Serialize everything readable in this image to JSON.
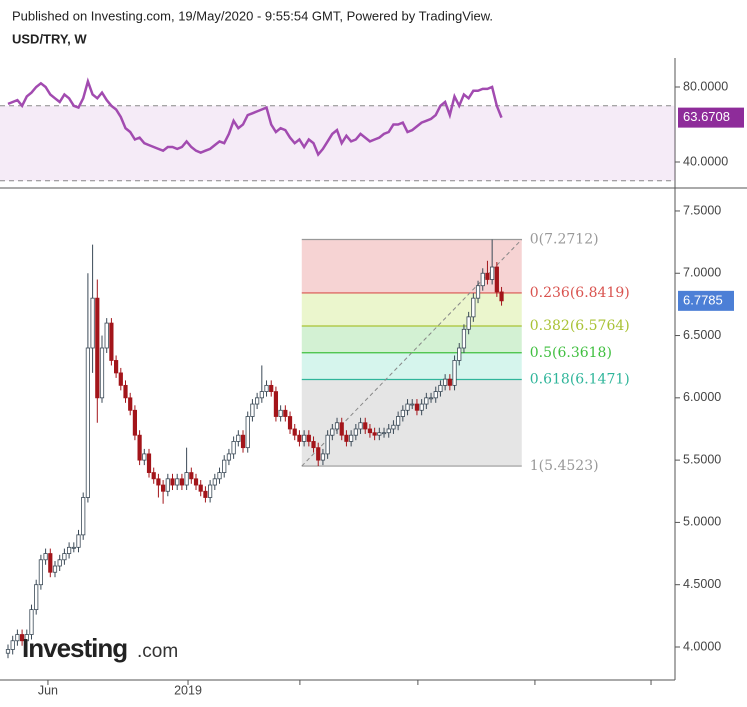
{
  "chart_data": {
    "type": "candlestick",
    "header": "Published on Investing.com, 19/May/2020 - 9:55:54 GMT, Powered by TradingView.",
    "title": "USD/TRY, W",
    "up_color": "#ffffff",
    "up_edge": "#3b4a57",
    "down_color": "#a3151a",
    "x": [
      0,
      1,
      2,
      3,
      4,
      5,
      6,
      7,
      8,
      9,
      10,
      11,
      12,
      13,
      14,
      15,
      16,
      17,
      18,
      19,
      20,
      21,
      22,
      23,
      24,
      25,
      26,
      27,
      28,
      29,
      30,
      31,
      32,
      33,
      34,
      35,
      36,
      37,
      38,
      39,
      40,
      41,
      42,
      43,
      44,
      45,
      46,
      47,
      48,
      49,
      50,
      51,
      52,
      53,
      54,
      55,
      56,
      57,
      58,
      59,
      60,
      61,
      62,
      63,
      64,
      65,
      66,
      67,
      68,
      69,
      70,
      71,
      72,
      73,
      74,
      75,
      76,
      77,
      78,
      79,
      80,
      81,
      82,
      83,
      84,
      85,
      86,
      87,
      88,
      89,
      90,
      91,
      92,
      93,
      94,
      95,
      96,
      97,
      98,
      99,
      100,
      101,
      102,
      103,
      104,
      105
    ],
    "open": [
      3.95,
      3.98,
      4.05,
      4.1,
      4.05,
      4.1,
      4.3,
      4.5,
      4.7,
      4.75,
      4.6,
      4.65,
      4.7,
      4.75,
      4.8,
      4.8,
      4.9,
      5.2,
      6.4,
      6.8,
      6.0,
      6.4,
      6.6,
      6.3,
      6.2,
      6.1,
      6.0,
      5.9,
      5.7,
      5.5,
      5.55,
      5.4,
      5.35,
      5.3,
      5.25,
      5.35,
      5.3,
      5.35,
      5.3,
      5.4,
      5.35,
      5.3,
      5.25,
      5.2,
      5.3,
      5.35,
      5.4,
      5.5,
      5.55,
      5.65,
      5.7,
      5.6,
      5.85,
      5.95,
      6.0,
      6.05,
      6.1,
      6.05,
      5.85,
      5.9,
      5.85,
      5.75,
      5.7,
      5.65,
      5.7,
      5.65,
      5.6,
      5.5,
      5.55,
      5.7,
      5.75,
      5.8,
      5.7,
      5.65,
      5.7,
      5.75,
      5.8,
      5.75,
      5.72,
      5.7,
      5.72,
      5.72,
      5.75,
      5.78,
      5.85,
      5.9,
      5.95,
      5.95,
      5.9,
      5.95,
      6.0,
      6.0,
      6.05,
      6.1,
      6.15,
      6.1,
      6.3,
      6.4,
      6.55,
      6.65,
      6.8,
      6.9,
      7.0,
      6.95,
      7.05,
      6.85
    ],
    "high": [
      4.02,
      4.09,
      4.14,
      4.14,
      4.14,
      4.34,
      4.54,
      4.74,
      4.79,
      4.79,
      4.69,
      4.74,
      4.79,
      4.84,
      4.84,
      4.94,
      5.24,
      7.0,
      7.23,
      6.95,
      6.5,
      6.64,
      6.64,
      6.34,
      6.24,
      6.14,
      6.04,
      5.94,
      5.74,
      5.59,
      5.59,
      5.44,
      5.39,
      5.34,
      5.39,
      5.39,
      5.39,
      5.39,
      5.6,
      5.44,
      5.39,
      5.34,
      5.29,
      5.34,
      5.39,
      5.44,
      5.54,
      5.59,
      5.69,
      5.74,
      5.74,
      5.89,
      5.99,
      6.04,
      6.26,
      6.14,
      6.14,
      6.09,
      5.94,
      5.94,
      5.89,
      5.79,
      5.74,
      5.74,
      5.74,
      5.69,
      5.64,
      5.59,
      5.74,
      5.79,
      5.84,
      5.84,
      5.74,
      5.74,
      5.79,
      5.84,
      5.84,
      5.79,
      5.76,
      5.76,
      5.76,
      5.79,
      5.82,
      5.89,
      5.94,
      5.99,
      5.99,
      5.99,
      5.99,
      6.04,
      6.04,
      6.09,
      6.14,
      6.19,
      6.19,
      6.34,
      6.44,
      6.59,
      6.69,
      6.84,
      6.94,
      7.04,
      7.1,
      7.2712,
      7.09,
      6.89
    ],
    "low": [
      3.91,
      3.94,
      4.01,
      4.01,
      4.01,
      4.06,
      4.26,
      4.46,
      4.66,
      4.56,
      4.56,
      4.61,
      4.66,
      4.71,
      4.76,
      4.76,
      4.86,
      5.16,
      6.2,
      5.8,
      5.96,
      6.36,
      6.26,
      6.16,
      6.06,
      5.96,
      5.86,
      5.66,
      5.46,
      5.46,
      5.36,
      5.31,
      5.2,
      5.15,
      5.21,
      5.26,
      5.26,
      5.26,
      5.26,
      5.31,
      5.26,
      5.21,
      5.16,
      5.16,
      5.26,
      5.31,
      5.36,
      5.46,
      5.51,
      5.61,
      5.56,
      5.56,
      5.81,
      5.91,
      5.96,
      6.01,
      6.01,
      5.81,
      5.81,
      5.81,
      5.71,
      5.66,
      5.61,
      5.61,
      5.61,
      5.56,
      5.4523,
      5.46,
      5.51,
      5.66,
      5.71,
      5.66,
      5.61,
      5.61,
      5.66,
      5.71,
      5.71,
      5.68,
      5.66,
      5.66,
      5.68,
      5.68,
      5.71,
      5.74,
      5.81,
      5.86,
      5.91,
      5.86,
      5.86,
      5.91,
      5.96,
      5.96,
      6.01,
      6.06,
      6.06,
      6.06,
      6.26,
      6.36,
      6.51,
      6.61,
      6.76,
      6.86,
      6.91,
      6.91,
      6.81,
      6.74
    ],
    "close": [
      3.98,
      4.05,
      4.1,
      4.05,
      4.1,
      4.3,
      4.5,
      4.7,
      4.75,
      4.6,
      4.65,
      4.7,
      4.75,
      4.8,
      4.8,
      4.9,
      5.2,
      6.4,
      6.8,
      6.0,
      6.4,
      6.6,
      6.3,
      6.2,
      6.1,
      6.0,
      5.9,
      5.7,
      5.5,
      5.55,
      5.4,
      5.35,
      5.3,
      5.25,
      5.35,
      5.3,
      5.35,
      5.3,
      5.4,
      5.35,
      5.3,
      5.25,
      5.2,
      5.3,
      5.35,
      5.4,
      5.5,
      5.55,
      5.65,
      5.7,
      5.6,
      5.85,
      5.95,
      6.0,
      6.05,
      6.1,
      6.05,
      5.85,
      5.9,
      5.85,
      5.75,
      5.7,
      5.65,
      5.7,
      5.65,
      5.6,
      5.5,
      5.55,
      5.7,
      5.75,
      5.8,
      5.7,
      5.65,
      5.7,
      5.75,
      5.8,
      5.75,
      5.72,
      5.7,
      5.72,
      5.72,
      5.75,
      5.78,
      5.85,
      5.9,
      5.95,
      5.95,
      5.9,
      5.95,
      6.0,
      6.0,
      6.05,
      6.1,
      6.15,
      6.1,
      6.3,
      6.4,
      6.55,
      6.65,
      6.8,
      6.9,
      7.0,
      6.95,
      7.05,
      6.85,
      6.7785
    ],
    "last_label": "6.7785",
    "last_color": "#4c7fd6",
    "xlim": [
      -1.7,
      141.9
    ],
    "xticks": [
      {
        "value": 8.5,
        "label": "Jun"
      },
      {
        "value": 38.3,
        "label": "2019"
      },
      {
        "value": 62.1,
        "label": null
      },
      {
        "value": 87.2,
        "label": null
      },
      {
        "value": 112.1,
        "label": null
      },
      {
        "value": 136.8,
        "label": null
      }
    ],
    "ylim": [
      3.735,
      7.588
    ],
    "yticks": [
      {
        "value": 7.5,
        "label": "7.5000"
      },
      {
        "value": 7.0,
        "label": "7.0000"
      },
      {
        "value": 6.5,
        "label": "6.5000"
      },
      {
        "value": 6.0,
        "label": "6.0000"
      },
      {
        "value": 5.5,
        "label": "5.5000"
      },
      {
        "value": 5.0,
        "label": "5.0000"
      },
      {
        "value": 4.5,
        "label": "4.5000"
      },
      {
        "value": 4.0,
        "label": "4.0000"
      }
    ],
    "fib": {
      "x_range": [
        62.5,
        109.3
      ],
      "prices": [
        7.2712,
        6.8419,
        6.5764,
        6.3618,
        6.1471,
        5.4523
      ],
      "labels": [
        "0(7.2712)",
        "0.236(6.8419)",
        "0.382(6.5764)",
        "0.5(6.3618)",
        "0.618(6.1471)",
        "1(5.4523)"
      ],
      "colors": [
        "#999999",
        "#d9534f",
        "#a9c234",
        "#3fbf3f",
        "#2fb59a",
        "#999999"
      ],
      "fills": [
        "rgba(225,110,110,0.3)",
        "rgba(190,225,90,0.3)",
        "rgba(110,210,110,0.3)",
        "rgba(90,215,185,0.25)",
        "rgba(160,160,160,0.28)"
      ]
    },
    "rsi": {
      "color": "#a24bb0",
      "band_fill": "rgba(190,120,200,0.15)",
      "values": [
        71,
        72,
        73,
        70,
        75,
        77,
        80,
        82,
        80,
        76,
        74,
        72,
        76,
        74,
        70,
        69,
        74,
        83,
        76,
        74,
        77,
        73,
        70,
        68,
        64,
        58,
        56,
        52,
        53,
        50,
        49,
        48,
        47,
        46,
        48,
        48,
        47,
        48,
        51,
        48,
        46,
        45,
        46,
        47,
        49,
        51,
        50,
        55,
        62,
        58,
        60,
        65,
        66,
        67,
        68,
        69,
        60,
        56,
        58,
        57,
        53,
        50,
        52,
        48,
        52,
        50,
        44,
        47,
        51,
        55,
        57,
        50,
        54,
        51,
        52,
        55,
        53,
        51,
        52,
        53,
        55,
        56,
        60,
        60,
        61,
        56,
        57,
        59,
        61,
        62,
        63,
        65,
        70,
        72,
        65,
        75,
        70,
        76,
        74,
        78,
        78,
        79,
        79,
        80,
        70,
        63.6708
      ],
      "bands": [
        30,
        70
      ],
      "ylim": [
        26.13,
        95.47
      ],
      "yticks": [
        {
          "value": 80,
          "label": "80.0000"
        },
        {
          "value": 40,
          "label": "40.0000"
        }
      ],
      "last_label": "63.6708"
    },
    "watermark": [
      "Investing",
      ".com"
    ]
  }
}
